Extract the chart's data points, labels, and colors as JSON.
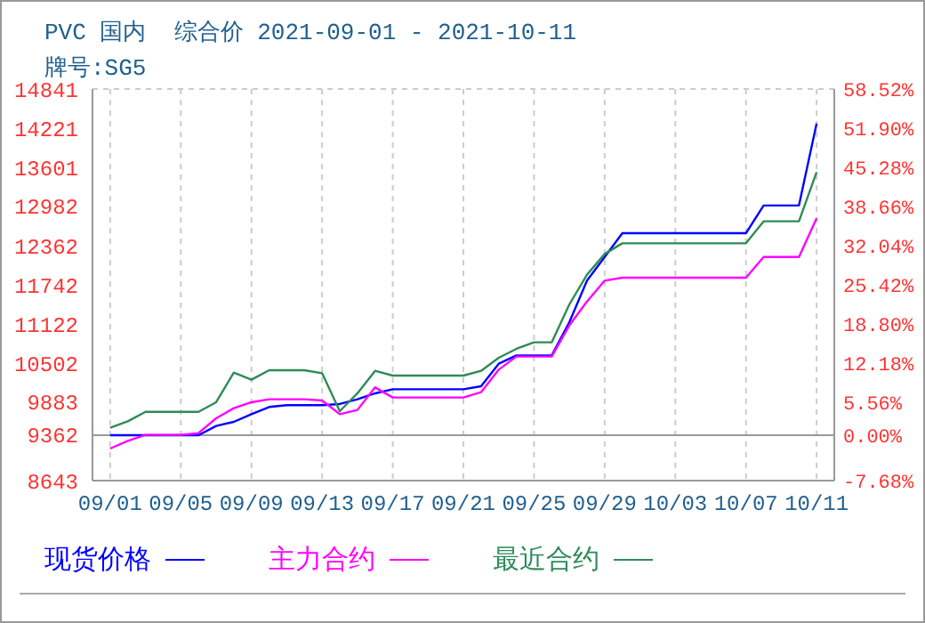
{
  "chart_data": {
    "type": "line",
    "title": "PVC 国内  综合价 2021-09-01 - 2021-10-11",
    "subtitle": "牌号:SG5",
    "x": [
      "2021-09-01",
      "2021-09-02",
      "2021-09-03",
      "2021-09-04",
      "2021-09-05",
      "2021-09-06",
      "2021-09-07",
      "2021-09-08",
      "2021-09-09",
      "2021-09-10",
      "2021-09-11",
      "2021-09-12",
      "2021-09-13",
      "2021-09-14",
      "2021-09-15",
      "2021-09-16",
      "2021-09-17",
      "2021-09-18",
      "2021-09-19",
      "2021-09-20",
      "2021-09-21",
      "2021-09-22",
      "2021-09-23",
      "2021-09-24",
      "2021-09-25",
      "2021-09-26",
      "2021-09-27",
      "2021-09-28",
      "2021-09-29",
      "2021-09-30",
      "2021-10-01",
      "2021-10-02",
      "2021-10-03",
      "2021-10-04",
      "2021-10-05",
      "2021-10-06",
      "2021-10-07",
      "2021-10-08",
      "2021-10-09",
      "2021-10-10",
      "2021-10-11"
    ],
    "series": [
      {
        "name": "现货价格",
        "color": "#0000ff",
        "values": [
          9362,
          9362,
          9362,
          9362,
          9362,
          9362,
          9507,
          9573,
          9695,
          9808,
          9836,
          9836,
          9836,
          9855,
          9930,
          10024,
          10089,
          10089,
          10089,
          10089,
          10089,
          10136,
          10493,
          10624,
          10624,
          10624,
          11150,
          11808,
          12183,
          12559,
          12559,
          12559,
          12559,
          12559,
          12559,
          12559,
          12559,
          12998,
          12998,
          12998,
          14296
        ]
      },
      {
        "name": "主力合约",
        "color": "#ff00ff",
        "values": [
          9150,
          9272,
          9366,
          9366,
          9366,
          9394,
          9629,
          9789,
          9883,
          9930,
          9930,
          9930,
          9911,
          9695,
          9761,
          10117,
          9958,
          9958,
          9958,
          9958,
          9958,
          10042,
          10399,
          10606,
          10606,
          10606,
          11100,
          11479,
          11808,
          11855,
          11855,
          11855,
          11855,
          11855,
          11855,
          11855,
          11855,
          12183,
          12183,
          12183,
          12794
        ]
      },
      {
        "name": "最近合约",
        "color": "#2e8b57",
        "values": [
          9479,
          9582,
          9732,
          9732,
          9732,
          9732,
          9883,
          10352,
          10240,
          10390,
          10390,
          10390,
          10343,
          9742,
          10024,
          10380,
          10305,
          10305,
          10305,
          10305,
          10305,
          10380,
          10587,
          10728,
          10831,
          10831,
          11432,
          11902,
          12230,
          12399,
          12399,
          12399,
          12399,
          12399,
          12399,
          12399,
          12399,
          12747,
          12747,
          12747,
          13526
        ]
      }
    ],
    "xlim": [
      "2021-08-31",
      "2021-10-12"
    ],
    "xticks": [
      {
        "value": "2021-09-01",
        "label": "09/01"
      },
      {
        "value": "2021-09-05",
        "label": "09/05"
      },
      {
        "value": "2021-09-09",
        "label": "09/09"
      },
      {
        "value": "2021-09-13",
        "label": "09/13"
      },
      {
        "value": "2021-09-17",
        "label": "09/17"
      },
      {
        "value": "2021-09-21",
        "label": "09/21"
      },
      {
        "value": "2021-09-25",
        "label": "09/25"
      },
      {
        "value": "2021-09-29",
        "label": "09/29"
      },
      {
        "value": "2021-10-03",
        "label": "10/03"
      },
      {
        "value": "2021-10-07",
        "label": "10/07"
      },
      {
        "value": "2021-10-11",
        "label": "10/11"
      }
    ],
    "ylim": [
      8643,
      14841
    ],
    "yticks": [
      8643,
      9362,
      9883,
      10502,
      11122,
      11742,
      12362,
      12982,
      13601,
      14221,
      14841
    ],
    "y2lim": [
      -7.68,
      58.52
    ],
    "y2ticks": [
      {
        "value": -7.68,
        "label": "-7.68%"
      },
      {
        "value": 0,
        "label": "0.00%"
      },
      {
        "value": 5.56,
        "label": "5.56%"
      },
      {
        "value": 12.18,
        "label": "12.18%"
      },
      {
        "value": 18.8,
        "label": "18.80%"
      },
      {
        "value": 25.42,
        "label": "25.42%"
      },
      {
        "value": 32.04,
        "label": "32.04%"
      },
      {
        "value": 38.66,
        "label": "38.66%"
      },
      {
        "value": 45.28,
        "label": "45.28%"
      },
      {
        "value": 51.9,
        "label": "51.90%"
      },
      {
        "value": 58.52,
        "label": "58.52%"
      }
    ],
    "ref_lines": [
      {
        "axis": "y",
        "value": 9362,
        "label": null,
        "color": "#999999",
        "line_style": "solid"
      }
    ],
    "grid": true,
    "legend": "bottom",
    "marker": "none",
    "line_style": "solid"
  }
}
